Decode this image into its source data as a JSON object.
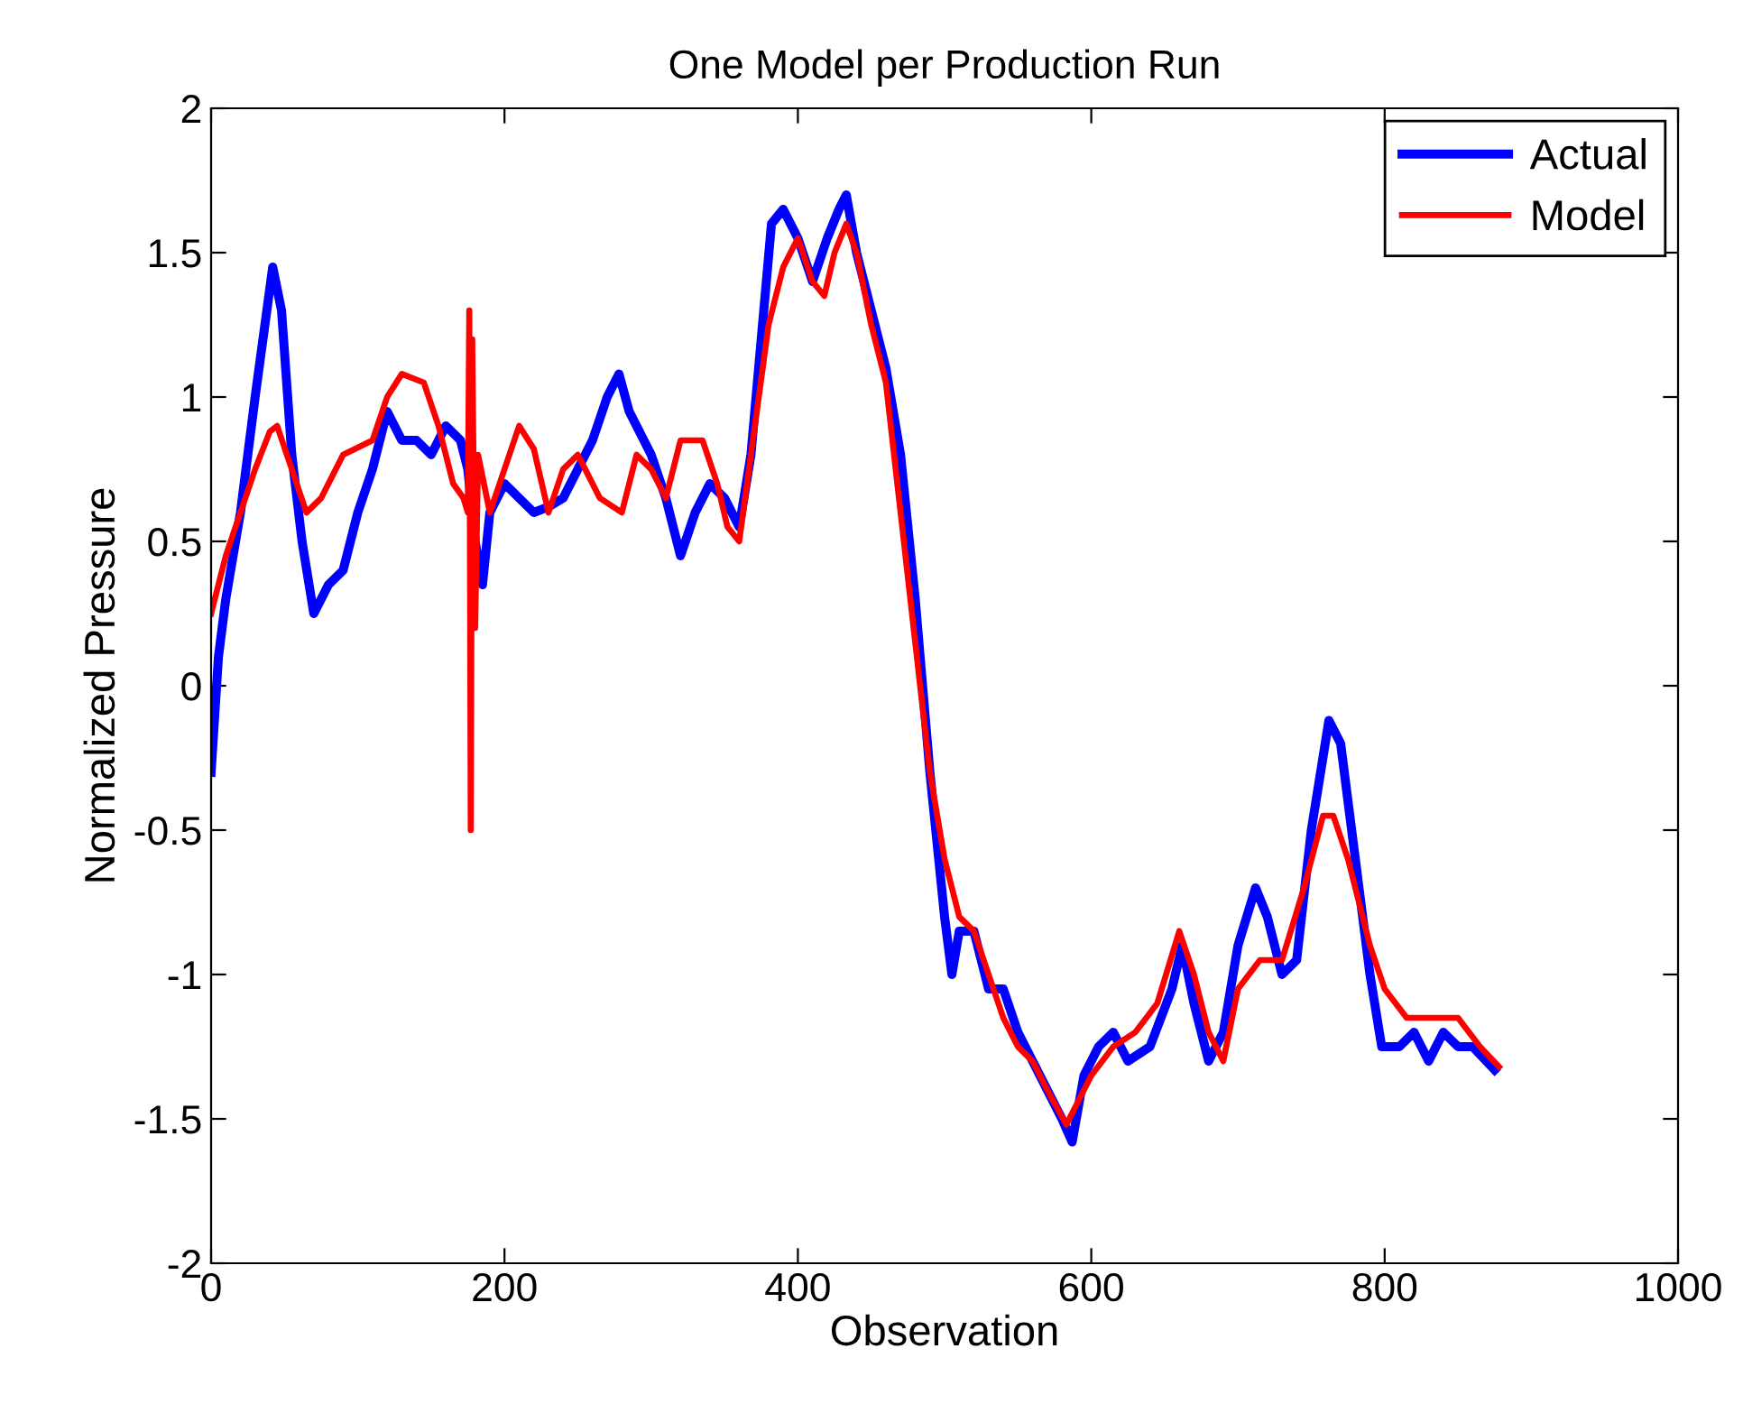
{
  "chart_data": {
    "type": "line",
    "title": "One Model per Production Run",
    "xlabel": "Observation",
    "ylabel": "Normalized Pressure",
    "xlim": [
      0,
      1000
    ],
    "xticks": [
      0,
      200,
      400,
      600,
      800,
      1000
    ],
    "ylim": [
      -2,
      2
    ],
    "yticks": [
      -2,
      -1.5,
      -1,
      -0.5,
      0,
      0.5,
      1,
      1.5,
      2
    ],
    "grid": false,
    "legend": "top right",
    "line_style": "solid",
    "marker": "none",
    "series": [
      {
        "name": "Actual",
        "color": "#0000ff",
        "x": [
          0,
          5,
          10,
          20,
          30,
          38,
          42,
          48,
          55,
          62,
          70,
          80,
          90,
          100,
          110,
          120,
          130,
          140,
          150,
          160,
          170,
          175,
          180,
          185,
          190,
          200,
          210,
          220,
          230,
          240,
          250,
          260,
          270,
          278,
          285,
          300,
          310,
          320,
          330,
          340,
          350,
          360,
          368,
          375,
          382,
          390,
          400,
          410,
          420,
          428,
          433,
          440,
          450,
          460,
          470,
          480,
          490,
          500,
          505,
          510,
          520,
          530,
          540,
          550,
          560,
          570,
          580,
          587,
          595,
          605,
          615,
          625,
          640,
          655,
          662,
          670,
          680,
          690,
          700,
          712,
          720,
          730,
          740,
          750,
          762,
          770,
          780,
          790,
          798,
          810,
          820,
          830,
          840,
          850,
          860,
          875
        ],
        "values": [
          -0.3,
          0.1,
          0.3,
          0.6,
          1.0,
          1.3,
          1.45,
          1.3,
          0.8,
          0.5,
          0.25,
          0.35,
          0.4,
          0.6,
          0.75,
          0.95,
          0.85,
          0.85,
          0.8,
          0.9,
          0.85,
          0.75,
          0.5,
          0.35,
          0.6,
          0.7,
          0.65,
          0.6,
          0.62,
          0.65,
          0.75,
          0.85,
          1.0,
          1.08,
          0.95,
          0.8,
          0.65,
          0.45,
          0.6,
          0.7,
          0.65,
          0.55,
          0.8,
          1.2,
          1.6,
          1.65,
          1.55,
          1.4,
          1.55,
          1.65,
          1.7,
          1.5,
          1.3,
          1.1,
          0.8,
          0.3,
          -0.3,
          -0.8,
          -1.0,
          -0.85,
          -0.85,
          -1.05,
          -1.05,
          -1.2,
          -1.3,
          -1.4,
          -1.5,
          -1.58,
          -1.35,
          -1.25,
          -1.2,
          -1.3,
          -1.25,
          -1.05,
          -0.9,
          -1.1,
          -1.3,
          -1.2,
          -0.9,
          -0.7,
          -0.8,
          -1.0,
          -0.95,
          -0.5,
          -0.12,
          -0.2,
          -0.6,
          -1.0,
          -1.25,
          -1.25,
          -1.2,
          -1.3,
          -1.2,
          -1.25,
          -1.25,
          -1.33
        ]
      },
      {
        "name": "Model",
        "color": "#ff0000",
        "x": [
          0,
          10,
          20,
          30,
          40,
          45,
          55,
          65,
          75,
          90,
          110,
          120,
          130,
          145,
          155,
          165,
          172,
          175,
          176,
          177,
          178,
          180,
          182,
          190,
          200,
          210,
          220,
          230,
          240,
          250,
          265,
          280,
          290,
          300,
          310,
          320,
          335,
          345,
          352,
          360,
          368,
          380,
          390,
          400,
          410,
          418,
          425,
          433,
          440,
          450,
          460,
          470,
          480,
          490,
          500,
          510,
          520,
          530,
          540,
          550,
          560,
          570,
          583,
          590,
          600,
          615,
          630,
          645,
          660,
          670,
          680,
          690,
          700,
          715,
          730,
          745,
          758,
          765,
          775,
          790,
          800,
          815,
          830,
          850,
          865,
          878
        ],
        "values": [
          0.25,
          0.45,
          0.6,
          0.75,
          0.88,
          0.9,
          0.75,
          0.6,
          0.65,
          0.8,
          0.85,
          1.0,
          1.08,
          1.05,
          0.9,
          0.7,
          0.65,
          0.6,
          1.3,
          -0.5,
          1.2,
          0.2,
          0.8,
          0.6,
          0.75,
          0.9,
          0.82,
          0.6,
          0.75,
          0.8,
          0.65,
          0.6,
          0.8,
          0.75,
          0.65,
          0.85,
          0.85,
          0.7,
          0.55,
          0.5,
          0.8,
          1.25,
          1.45,
          1.55,
          1.4,
          1.35,
          1.5,
          1.6,
          1.5,
          1.25,
          1.05,
          0.6,
          0.15,
          -0.3,
          -0.6,
          -0.8,
          -0.85,
          -1.0,
          -1.15,
          -1.25,
          -1.3,
          -1.4,
          -1.52,
          -1.45,
          -1.35,
          -1.25,
          -1.2,
          -1.1,
          -0.85,
          -1.0,
          -1.2,
          -1.3,
          -1.05,
          -0.95,
          -0.95,
          -0.7,
          -0.45,
          -0.45,
          -0.6,
          -0.9,
          -1.05,
          -1.15,
          -1.15,
          -1.15,
          -1.25,
          -1.32
        ]
      }
    ]
  }
}
